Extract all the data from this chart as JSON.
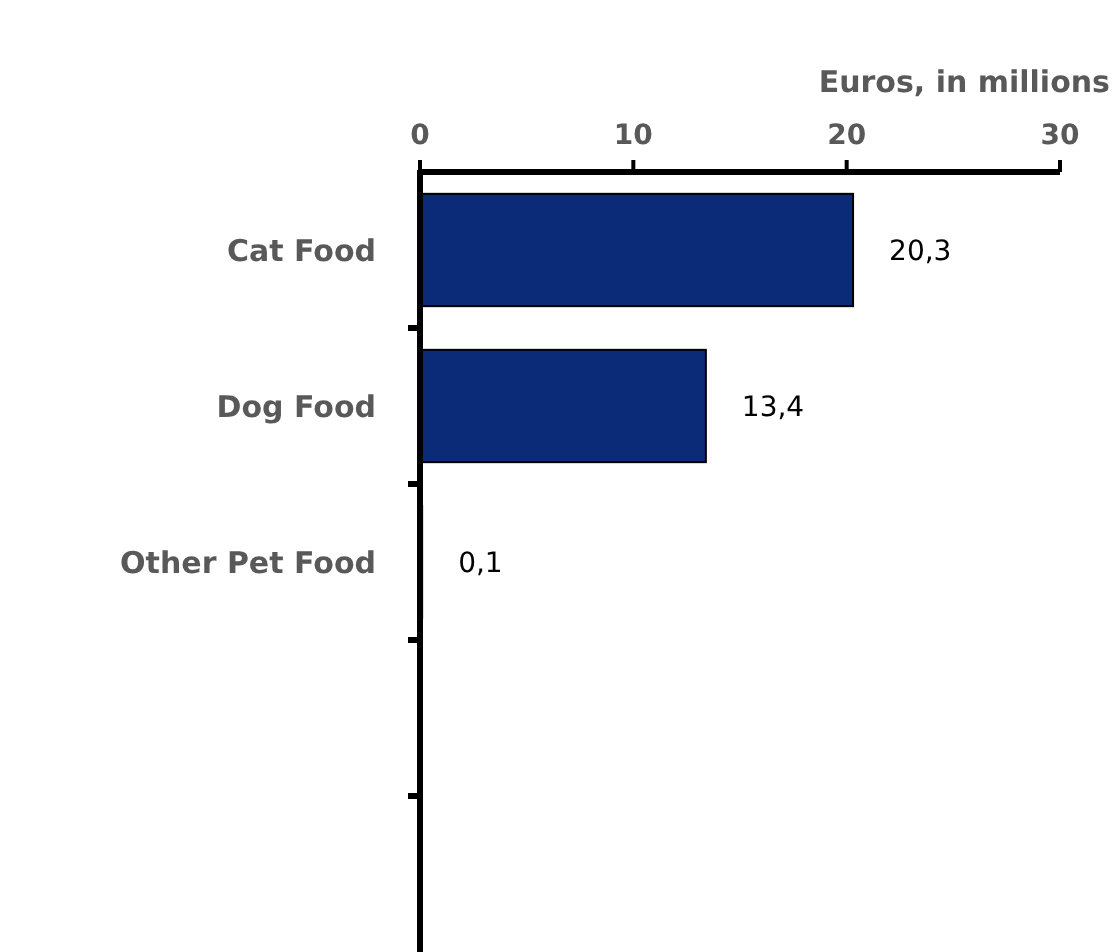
{
  "chart_data": {
    "type": "bar",
    "orientation": "horizontal",
    "xlabel": "Euros, in millions",
    "categories": [
      "Cat Food",
      "Dog Food",
      "Other Pet Food",
      null,
      null
    ],
    "values": [
      20.3,
      13.4,
      0.1,
      null,
      null
    ],
    "value_labels": [
      "20,3",
      "13,4",
      "0,1",
      null,
      null
    ],
    "color": "#0b2a78",
    "xlim": [
      0,
      30
    ],
    "xticks": [
      0,
      10,
      20,
      30
    ]
  }
}
